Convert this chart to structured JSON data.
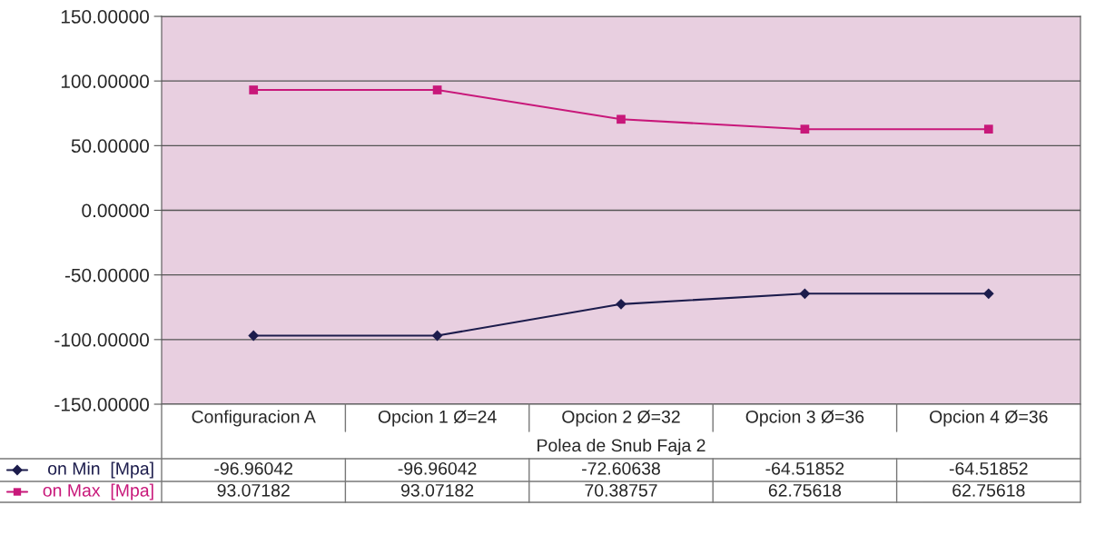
{
  "chart_data": {
    "type": "line",
    "categories": [
      "Configuracion A",
      "Opcion 1 Ø=24",
      "Opcion 2 Ø=32",
      "Opcion 3 Ø=36",
      "Opcion 4 Ø=36"
    ],
    "xlabel": "Polea de Snub Faja 2",
    "series": [
      {
        "name": "on Min  [Mpa]",
        "color": "#1c1c4c",
        "marker": "diamond",
        "values": [
          -96.96042,
          -96.96042,
          -72.60638,
          -64.51852,
          -64.51852
        ]
      },
      {
        "name": "on Max  [Mpa]",
        "color": "#c8187a",
        "marker": "square",
        "values": [
          93.07182,
          93.07182,
          70.38757,
          62.75618,
          62.75618
        ]
      }
    ],
    "ylim": [
      -150,
      150
    ],
    "yticks": [
      {
        "value": -150,
        "label": "-150.00000"
      },
      {
        "value": -100,
        "label": "-100.00000"
      },
      {
        "value": -50,
        "label": "-50.00000"
      },
      {
        "value": 0,
        "label": "0.00000"
      },
      {
        "value": 50,
        "label": "50.00000"
      },
      {
        "value": 100,
        "label": "100.00000"
      },
      {
        "value": 150,
        "label": "150.00000"
      }
    ],
    "grid": "y",
    "data_labels": true,
    "legend": "bottom left"
  }
}
